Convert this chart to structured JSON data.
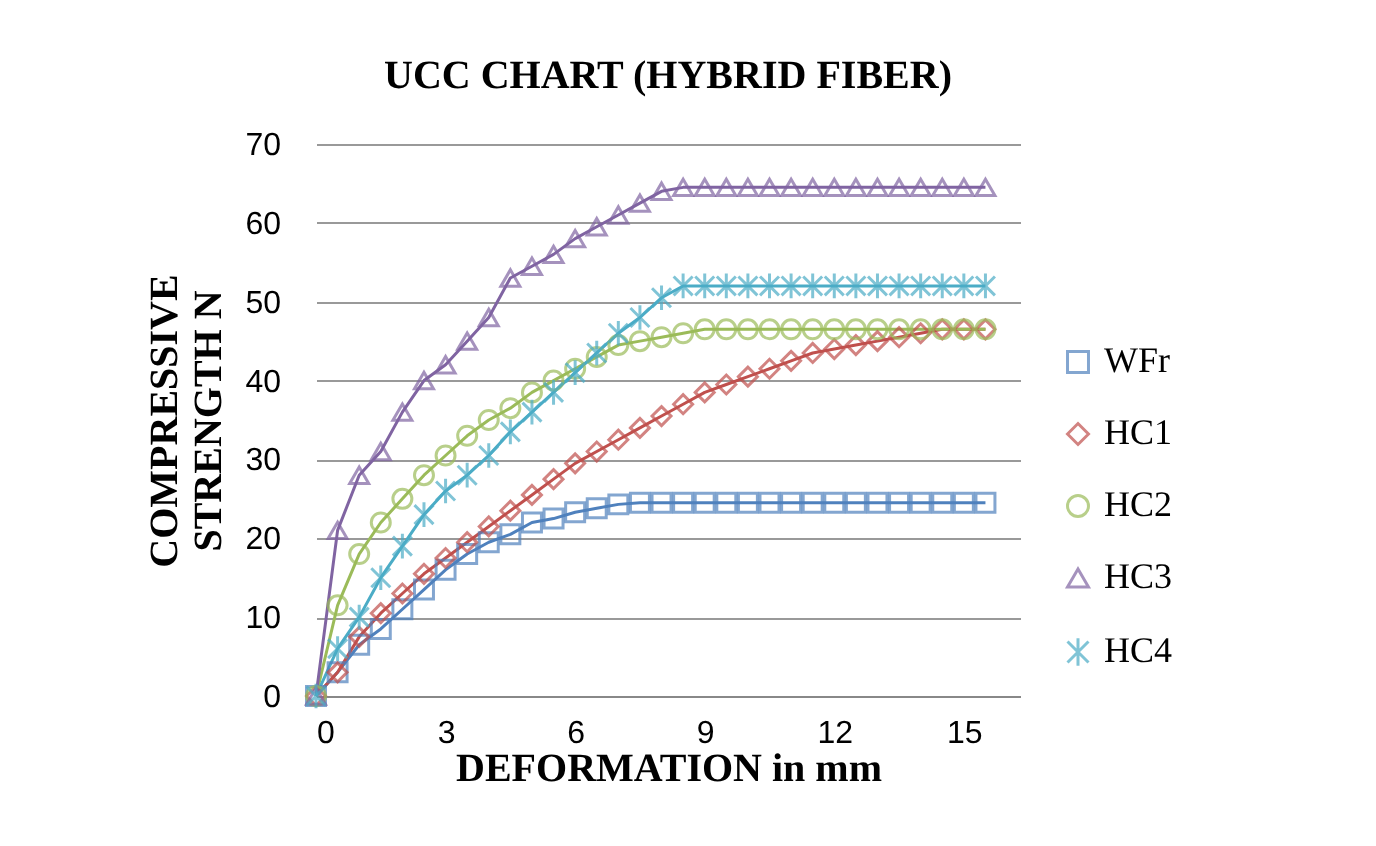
{
  "chart_data": {
    "type": "line",
    "title": "UCC CHART (HYBRID FIBER)",
    "xlabel": "DEFORMATION in mm",
    "ylabel": "COMPRESSIVE\nSTRENGTH  N",
    "x": [
      0,
      0.5,
      1,
      1.5,
      2,
      2.5,
      3,
      3.5,
      4,
      4.5,
      5,
      5.5,
      6,
      6.5,
      7,
      7.5,
      8,
      8.5,
      9,
      9.5,
      10,
      10.5,
      11,
      11.5,
      12,
      12.5,
      13,
      13.5,
      14,
      14.5,
      15,
      15.5
    ],
    "series": [
      {
        "name": "WFr",
        "color": "#4f81bd",
        "marker": "square",
        "values": [
          0,
          3,
          6.5,
          8.5,
          11,
          13.5,
          16,
          18,
          19.5,
          20.5,
          22,
          22.5,
          23.3,
          23.8,
          24.3,
          24.5,
          24.5,
          24.5,
          24.5,
          24.5,
          24.5,
          24.5,
          24.5,
          24.5,
          24.5,
          24.5,
          24.5,
          24.5,
          24.5,
          24.5,
          24.5,
          24.5
        ]
      },
      {
        "name": "HC1",
        "color": "#c0504d",
        "marker": "diamond",
        "values": [
          0,
          3,
          7.5,
          10.5,
          13,
          15.5,
          17.5,
          19.5,
          21.5,
          23.5,
          25.5,
          27.5,
          29.5,
          31,
          32.5,
          34,
          35.5,
          37,
          38.5,
          39.5,
          40.5,
          41.5,
          42.5,
          43.5,
          44,
          44.5,
          45,
          45.5,
          46,
          46.5,
          46.5,
          46.5
        ]
      },
      {
        "name": "HC2",
        "color": "#9bbb59",
        "marker": "circle",
        "values": [
          0,
          11.5,
          18,
          22,
          25,
          28,
          30.5,
          33,
          35,
          36.5,
          38.5,
          40,
          41.5,
          43,
          44.5,
          45,
          45.5,
          46,
          46.5,
          46.5,
          46.5,
          46.5,
          46.5,
          46.5,
          46.5,
          46.5,
          46.5,
          46.5,
          46.5,
          46.5,
          46.5,
          46.5
        ]
      },
      {
        "name": "HC3",
        "color": "#8064a2",
        "marker": "triangle",
        "values": [
          0,
          21,
          28,
          31,
          36,
          40,
          42,
          45,
          48,
          53,
          54.5,
          56,
          58,
          59.5,
          61,
          62.5,
          64,
          64.5,
          64.5,
          64.5,
          64.5,
          64.5,
          64.5,
          64.5,
          64.5,
          64.5,
          64.5,
          64.5,
          64.5,
          64.5,
          64.5,
          64.5
        ]
      },
      {
        "name": "HC4",
        "color": "#4bacc6",
        "marker": "cross",
        "values": [
          0,
          6,
          10,
          15,
          19,
          23,
          26,
          28,
          30.5,
          33.5,
          36,
          38.5,
          41,
          43.5,
          46,
          48,
          50.5,
          52,
          52,
          52,
          52,
          52,
          52,
          52,
          52,
          52,
          52,
          52,
          52,
          52,
          52,
          52
        ]
      }
    ],
    "xlim": [
      0,
      16.3
    ],
    "xticks": [
      0,
      3,
      6,
      9,
      12,
      15
    ],
    "ylim": [
      0,
      70
    ],
    "yticks": [
      0,
      10,
      20,
      30,
      40,
      50,
      60,
      70
    ],
    "grid": "y",
    "legend": "right"
  }
}
